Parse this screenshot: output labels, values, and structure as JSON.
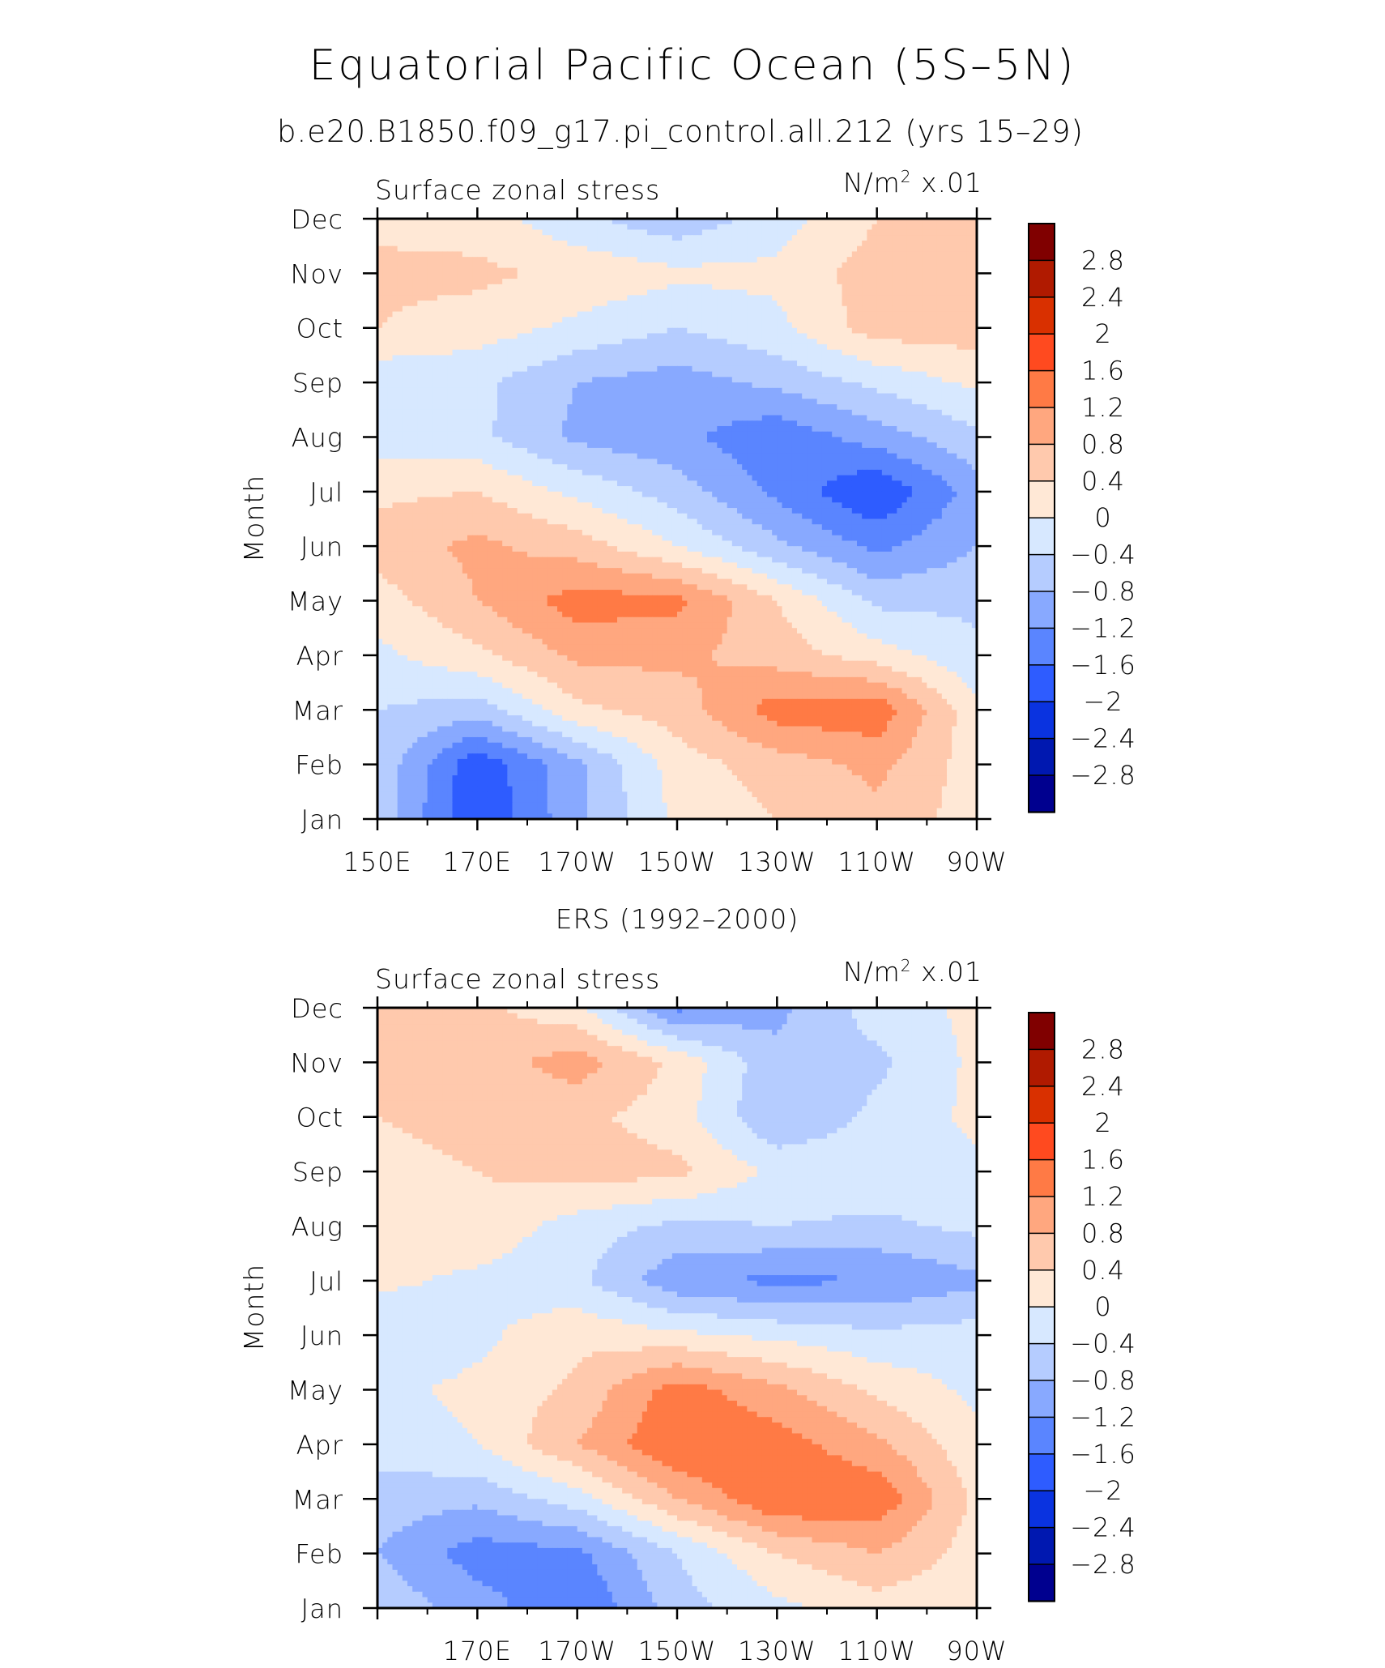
{
  "figure": {
    "title": "Equatorial Pacific Ocean (5S–5N)"
  },
  "contour_levels": {
    "labels": [
      "2.8",
      "2.4",
      "2",
      "1.6",
      "1.2",
      "0.8",
      "0.4",
      "0",
      "−0.4",
      "−0.8",
      "−1.2",
      "−1.6",
      "−2",
      "−2.4",
      "−2.8"
    ],
    "colors": [
      "#800000",
      "#b01a00",
      "#d93000",
      "#ff4a1f",
      "#ff7a45",
      "#ffa77f",
      "#ffc9ad",
      "#ffe8d6",
      "#d7e8ff",
      "#b5ccff",
      "#88a9ff",
      "#5a85ff",
      "#2e5cff",
      "#0a33e0",
      "#0018b0",
      "#00008f"
    ]
  },
  "chart_data": [
    {
      "type": "heatmap",
      "title": "b.e20.B1850.f09_g17.pi_control.all.212 (yrs 15–29)",
      "left_label": "Surface zonal stress",
      "units": "N/m² x.01",
      "ylabel": "Month",
      "x_tick_labels": [
        "150E",
        "170E",
        "170W",
        "150W",
        "130W",
        "110W",
        "90W"
      ],
      "y_tick_labels": [
        "Jan",
        "Feb",
        "Mar",
        "Apr",
        "May",
        "Jun",
        "Jul",
        "Aug",
        "Sep",
        "Oct",
        "Nov",
        "Dec"
      ],
      "xlim_deg_east": [
        150,
        270
      ],
      "ylim_month": [
        1,
        12
      ],
      "contour_min": -2.8,
      "contour_max": 2.8,
      "contour_interval": 0.4,
      "values_lon_deg_east": [
        150,
        170,
        190,
        210,
        230,
        250,
        270
      ],
      "values": [
        [
          -0.5,
          -2.0,
          -0.9,
          0.1,
          0.4,
          0.7,
          0.2
        ],
        [
          -0.5,
          -1.9,
          -0.9,
          0.2,
          0.6,
          0.9,
          0.2
        ],
        [
          -0.4,
          -0.6,
          0.3,
          0.6,
          1.4,
          1.5,
          0.1
        ],
        [
          -0.1,
          0.3,
          0.9,
          0.9,
          0.6,
          0.2,
          -0.3
        ],
        [
          0.2,
          0.8,
          1.4,
          1.3,
          0.4,
          -0.5,
          -0.5
        ],
        [
          0.6,
          0.9,
          0.6,
          0.0,
          -0.7,
          -1.3,
          -0.8
        ],
        [
          0.3,
          0.4,
          -0.1,
          -0.6,
          -1.3,
          -2.0,
          -1.0
        ],
        [
          -0.2,
          -0.3,
          -0.9,
          -1.1,
          -1.5,
          -1.0,
          -0.5
        ],
        [
          -0.3,
          -0.3,
          -0.8,
          -1.0,
          -0.7,
          -0.3,
          0.1
        ],
        [
          0.4,
          0.2,
          -0.1,
          -0.4,
          -0.1,
          0.6,
          0.6
        ],
        [
          0.5,
          0.5,
          0.3,
          0.1,
          0.1,
          0.6,
          0.6
        ],
        [
          0.3,
          0.2,
          -0.3,
          -0.7,
          -0.2,
          0.4,
          0.4
        ]
      ]
    },
    {
      "type": "heatmap",
      "title": "ERS (1992–2000)",
      "left_label": "Surface zonal stress",
      "units": "N/m² x.01",
      "ylabel": "Month",
      "x_tick_labels": [
        "",
        "170E",
        "170W",
        "150W",
        "130W",
        "110W",
        "90W"
      ],
      "y_tick_labels": [
        "Jan",
        "Feb",
        "Mar",
        "Apr",
        "May",
        "Jun",
        "Jul",
        "Aug",
        "Sep",
        "Oct",
        "Nov",
        "Dec"
      ],
      "xlim_deg_east": [
        150,
        270
      ],
      "ylim_month": [
        1,
        12
      ],
      "contour_min": -2.8,
      "contour_max": 2.8,
      "contour_interval": 0.4,
      "values_lon_deg_east": [
        150,
        170,
        190,
        210,
        230,
        250,
        270
      ],
      "values": [
        [
          -0.5,
          -1.0,
          -1.6,
          -0.6,
          -0.1,
          0.2,
          0.1
        ],
        [
          -0.8,
          -1.4,
          -1.3,
          -0.4,
          0.4,
          0.8,
          0.2
        ],
        [
          -0.6,
          -0.7,
          -0.2,
          0.8,
          1.6,
          1.5,
          0.3
        ],
        [
          -0.2,
          0.0,
          0.8,
          1.6,
          1.4,
          0.9,
          0.1
        ],
        [
          -0.1,
          0.1,
          0.5,
          1.4,
          0.9,
          0.3,
          -0.1
        ],
        [
          -0.4,
          -0.1,
          0.3,
          0.1,
          -0.1,
          -0.3,
          -0.2
        ],
        [
          0.1,
          -0.1,
          -0.3,
          -1.1,
          -1.3,
          -1.2,
          -0.9
        ],
        [
          0.2,
          0.3,
          -0.2,
          -0.5,
          -0.4,
          -0.5,
          -0.3
        ],
        [
          0.3,
          0.4,
          0.6,
          0.5,
          -0.1,
          -0.1,
          -0.1
        ],
        [
          0.4,
          0.5,
          0.5,
          0.2,
          -0.8,
          -0.3,
          0.1
        ],
        [
          0.5,
          0.6,
          1.0,
          0.3,
          -0.7,
          -0.5,
          0.1
        ],
        [
          0.6,
          0.5,
          0.1,
          -1.3,
          -0.9,
          -0.2,
          0.1
        ]
      ]
    }
  ]
}
